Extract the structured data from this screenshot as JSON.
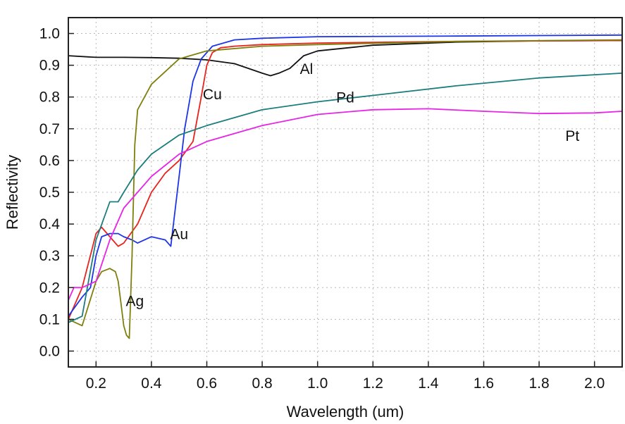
{
  "chart_data": {
    "type": "line",
    "xlabel": "Wavelength (um)",
    "ylabel": "Reflectivity",
    "xlim": [
      0.1,
      2.1
    ],
    "ylim": [
      -0.05,
      1.05
    ],
    "xticks": [
      0.2,
      0.4,
      0.6,
      0.8,
      1.0,
      1.2,
      1.4,
      1.6,
      1.8,
      2.0
    ],
    "xtick_labels": [
      "0.2",
      "0.4",
      "0.6",
      "0.8",
      "1.0",
      "1.2",
      "1.4",
      "1.6",
      "1.8",
      "2.0"
    ],
    "yticks": [
      0.0,
      0.1,
      0.2,
      0.3,
      0.4,
      0.5,
      0.6,
      0.7,
      0.8,
      0.9,
      1.0
    ],
    "ytick_labels": [
      "0.0",
      "0.1",
      "0.2",
      "0.3",
      "0.4",
      "0.5",
      "0.6",
      "0.7",
      "0.8",
      "0.9",
      "1.0"
    ],
    "grid": true,
    "series": [
      {
        "name": "Al",
        "color": "#111111",
        "label_at": [
          0.96,
          0.89
        ],
        "x": [
          0.1,
          0.2,
          0.3,
          0.4,
          0.5,
          0.6,
          0.7,
          0.75,
          0.8,
          0.83,
          0.86,
          0.9,
          0.95,
          1.0,
          1.2,
          1.5,
          1.8,
          2.1
        ],
        "y": [
          0.93,
          0.925,
          0.925,
          0.924,
          0.922,
          0.917,
          0.905,
          0.89,
          0.875,
          0.867,
          0.875,
          0.89,
          0.93,
          0.945,
          0.963,
          0.973,
          0.977,
          0.978
        ]
      },
      {
        "name": "Cu",
        "color": "#e8231d",
        "label_at": [
          0.62,
          0.81
        ],
        "x": [
          0.1,
          0.15,
          0.2,
          0.22,
          0.25,
          0.28,
          0.3,
          0.35,
          0.4,
          0.45,
          0.5,
          0.55,
          0.58,
          0.6,
          0.62,
          0.65,
          0.7,
          0.8,
          1.0,
          1.5,
          2.1
        ],
        "y": [
          0.1,
          0.2,
          0.37,
          0.39,
          0.36,
          0.33,
          0.34,
          0.4,
          0.5,
          0.56,
          0.6,
          0.66,
          0.8,
          0.9,
          0.94,
          0.955,
          0.96,
          0.965,
          0.97,
          0.975,
          0.978
        ]
      },
      {
        "name": "Au",
        "color": "#1d35e8",
        "label_at": [
          0.5,
          0.37
        ],
        "x": [
          0.1,
          0.15,
          0.18,
          0.2,
          0.22,
          0.25,
          0.28,
          0.3,
          0.33,
          0.35,
          0.4,
          0.45,
          0.47,
          0.5,
          0.52,
          0.55,
          0.58,
          0.62,
          0.7,
          0.8,
          1.0,
          1.5,
          2.1
        ],
        "y": [
          0.11,
          0.17,
          0.2,
          0.3,
          0.36,
          0.37,
          0.37,
          0.36,
          0.35,
          0.34,
          0.36,
          0.35,
          0.33,
          0.55,
          0.7,
          0.85,
          0.92,
          0.96,
          0.98,
          0.985,
          0.99,
          0.992,
          0.995
        ]
      },
      {
        "name": "Ag",
        "color": "#7f7f0e",
        "label_at": [
          0.34,
          0.16
        ],
        "x": [
          0.1,
          0.15,
          0.2,
          0.22,
          0.25,
          0.27,
          0.28,
          0.29,
          0.3,
          0.31,
          0.32,
          0.33,
          0.34,
          0.35,
          0.4,
          0.5,
          0.6,
          0.8,
          1.0,
          1.5,
          2.1
        ],
        "y": [
          0.1,
          0.08,
          0.22,
          0.25,
          0.26,
          0.25,
          0.22,
          0.15,
          0.08,
          0.05,
          0.04,
          0.3,
          0.65,
          0.76,
          0.84,
          0.92,
          0.945,
          0.96,
          0.965,
          0.975,
          0.98
        ]
      },
      {
        "name": "Pd",
        "color": "#1b7d7d",
        "label_at": [
          1.1,
          0.8
        ],
        "x": [
          0.1,
          0.15,
          0.2,
          0.25,
          0.28,
          0.3,
          0.35,
          0.4,
          0.5,
          0.6,
          0.8,
          1.0,
          1.2,
          1.5,
          1.8,
          2.1
        ],
        "y": [
          0.09,
          0.11,
          0.35,
          0.47,
          0.47,
          0.5,
          0.57,
          0.62,
          0.68,
          0.71,
          0.76,
          0.785,
          0.805,
          0.835,
          0.86,
          0.875
        ]
      },
      {
        "name": "Pt",
        "color": "#e624e6",
        "label_at": [
          1.92,
          0.68
        ],
        "x": [
          0.1,
          0.12,
          0.15,
          0.2,
          0.25,
          0.3,
          0.35,
          0.4,
          0.5,
          0.6,
          0.8,
          1.0,
          1.2,
          1.4,
          1.6,
          1.8,
          2.0,
          2.1
        ],
        "y": [
          0.16,
          0.2,
          0.2,
          0.22,
          0.35,
          0.45,
          0.5,
          0.55,
          0.62,
          0.66,
          0.71,
          0.745,
          0.76,
          0.763,
          0.755,
          0.748,
          0.75,
          0.755
        ]
      }
    ]
  }
}
